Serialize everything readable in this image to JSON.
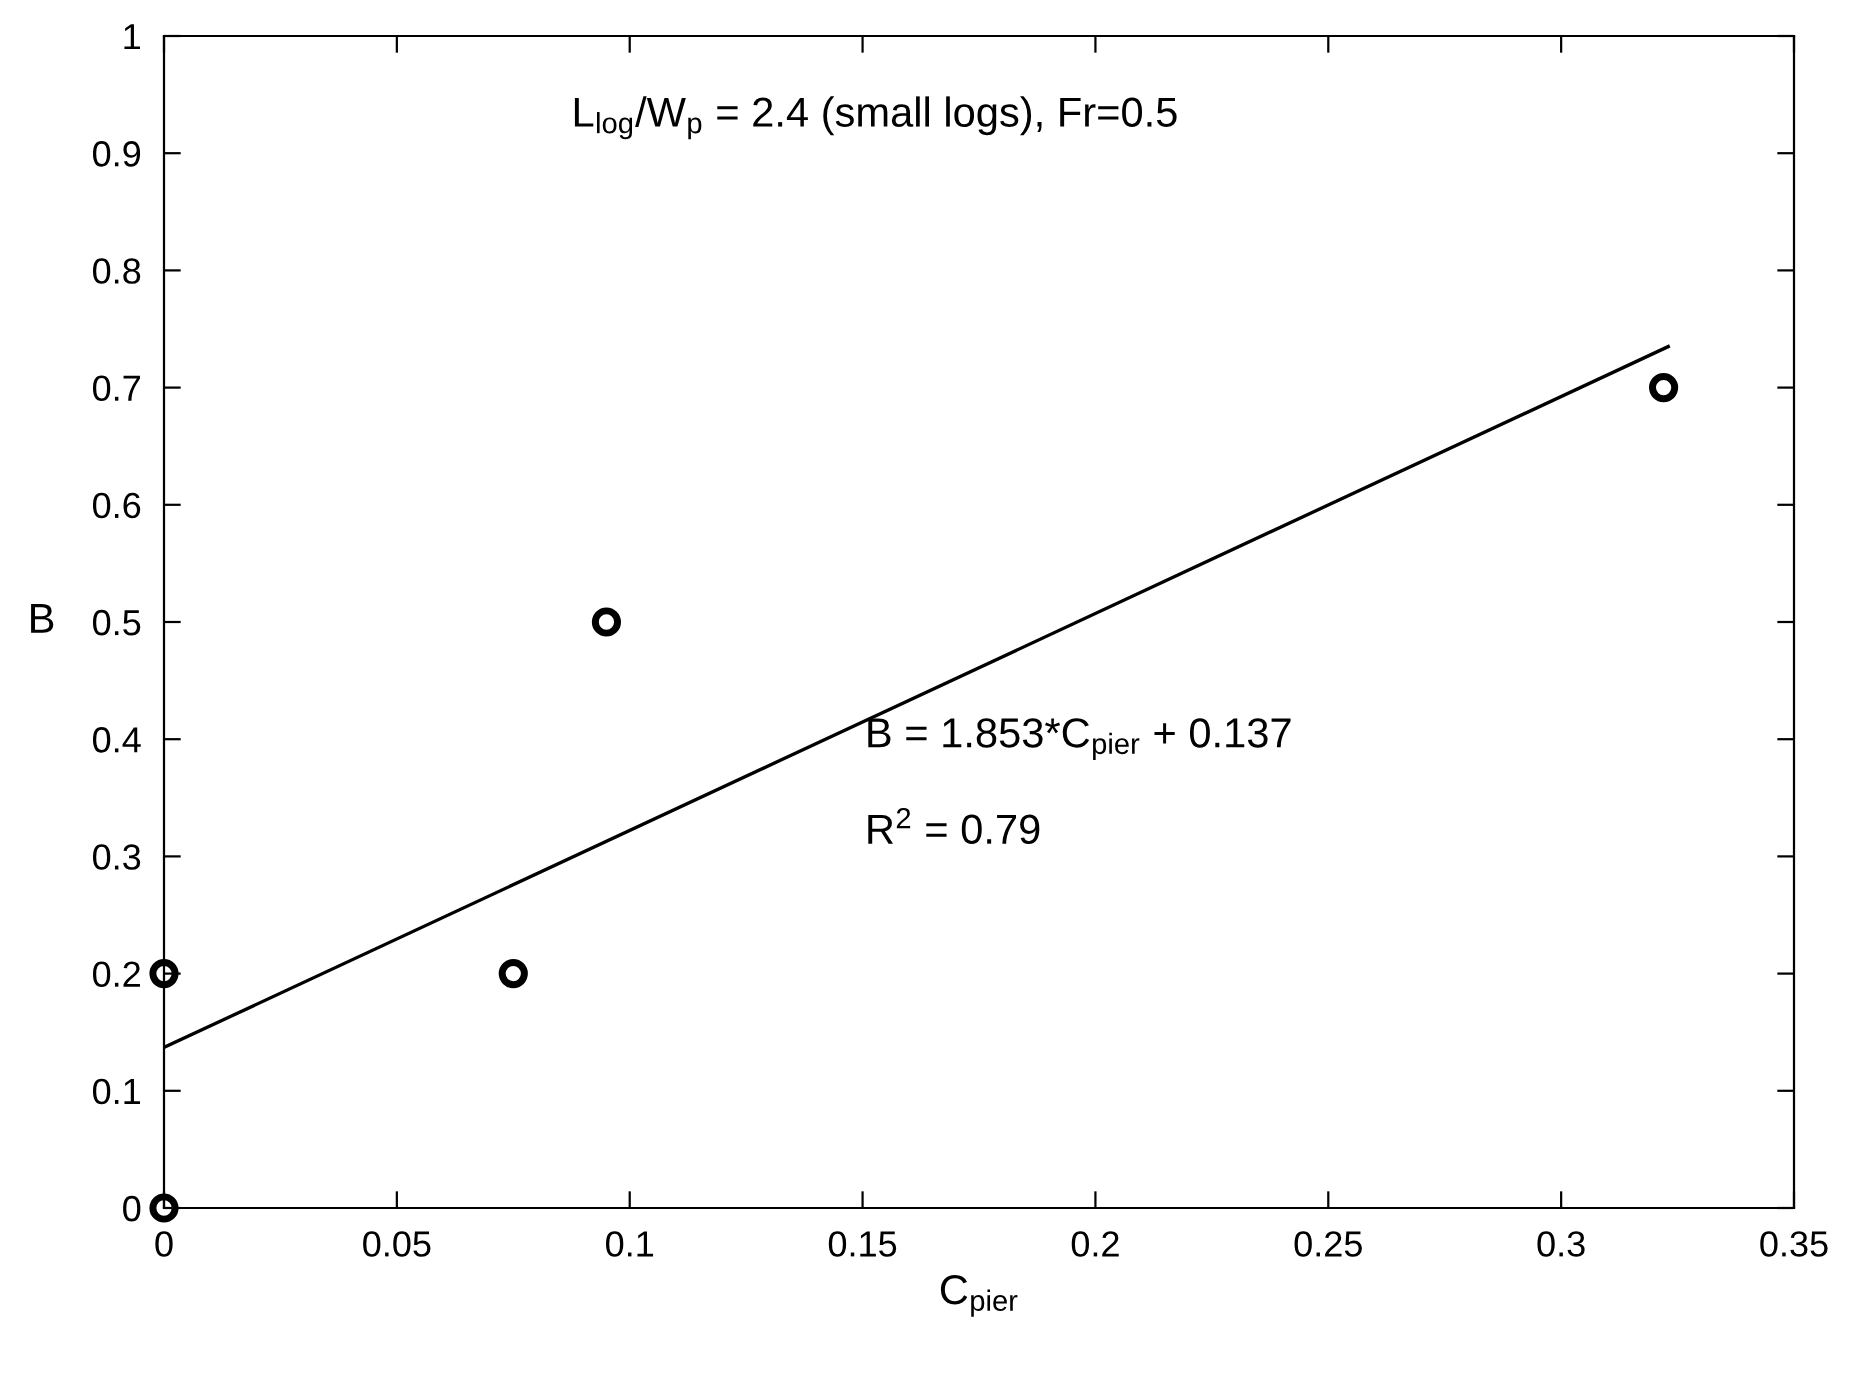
{
  "chart_data": {
    "type": "scatter",
    "xlabel": "C$_{pier}$",
    "ylabel": "B",
    "xlim": [
      0,
      0.35
    ],
    "xticks": [
      0,
      0.05,
      0.1,
      0.15,
      0.2,
      0.25,
      0.3,
      0.35
    ],
    "ylim": [
      0,
      1
    ],
    "yticks": [
      0,
      0.1,
      0.2,
      0.3,
      0.4,
      0.5,
      0.6,
      0.7,
      0.8,
      0.9,
      1
    ],
    "grid": false,
    "legend": false,
    "series": [
      {
        "color": "#000000",
        "marker": "circle",
        "x": [
          0,
          0,
          0.075,
          0.095,
          0.322
        ],
        "values": [
          0,
          0.2,
          0.2,
          0.5,
          0.7
        ]
      },
      {
        "type": "line",
        "color": "#000000",
        "marker": "none",
        "line_style": "solid",
        "x": [
          0,
          0.323
        ],
        "values": [
          0.137,
          0.735
        ]
      }
    ],
    "annotations": [
      "L$_{log}$/W$_{p}$ = 2.4 (small logs), Fr=0.5",
      "B = 1.853*C$_{pier}$ + 0.137",
      "R$^{2}$ = 0.79"
    ]
  }
}
